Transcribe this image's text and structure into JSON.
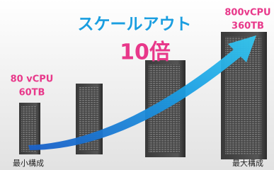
{
  "headline": {
    "title": "スケールアウト",
    "multiplier": "10倍"
  },
  "start": {
    "cpu": "80 vCPU",
    "storage": "60TB",
    "label": "最小構成"
  },
  "end": {
    "cpu": "800vCPU",
    "storage": "360TB",
    "label": "最大構成"
  }
}
